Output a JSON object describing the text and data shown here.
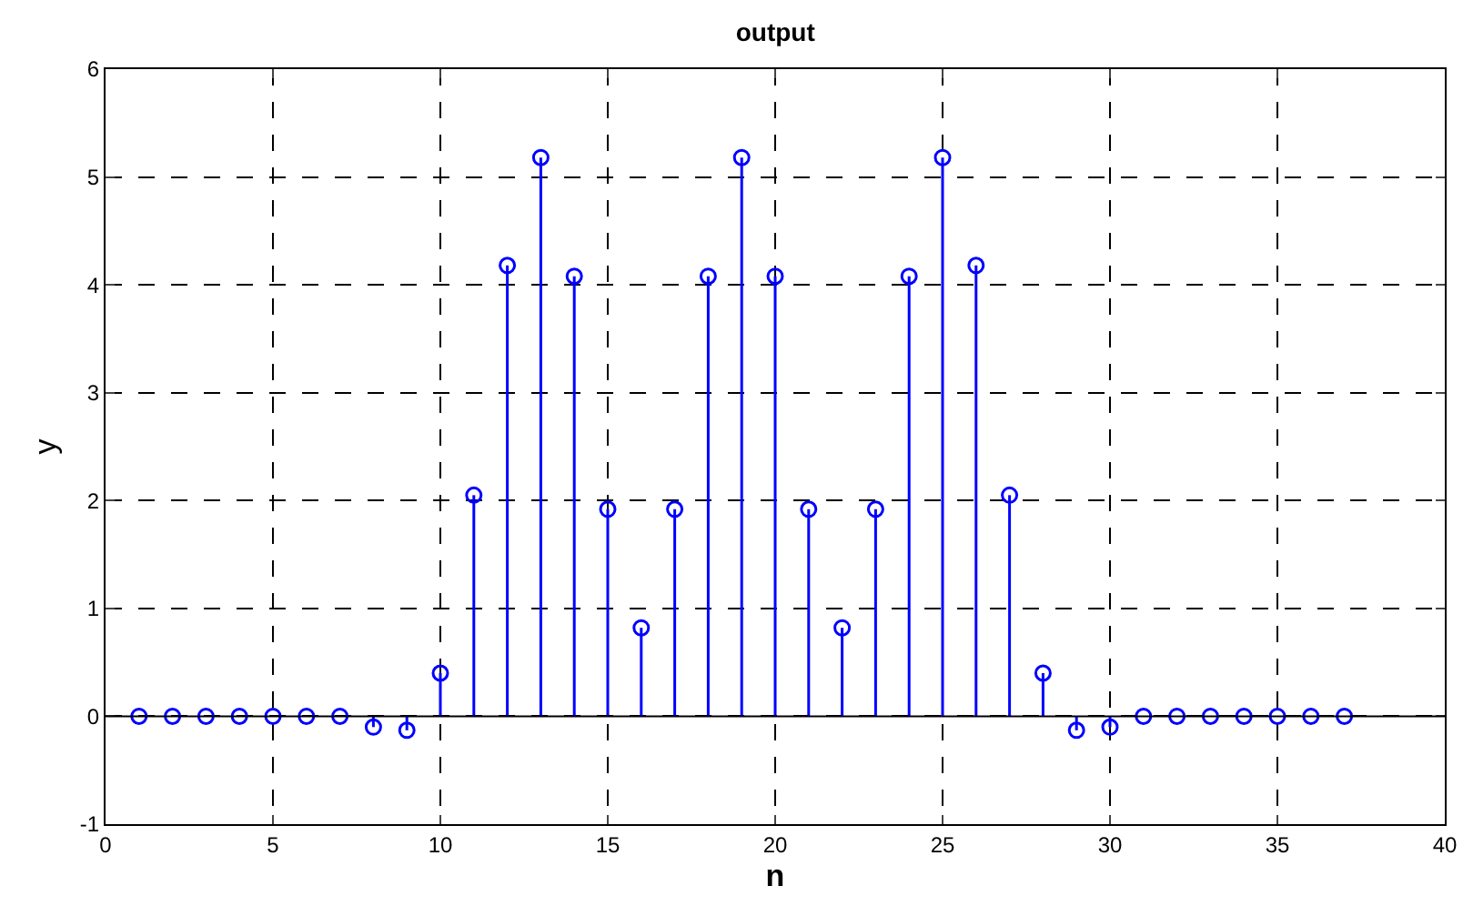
{
  "chart_data": {
    "type": "lollipop",
    "title": "output",
    "xlabel": "n",
    "ylabel": "y",
    "x": [
      1,
      2,
      3,
      4,
      5,
      6,
      7,
      8,
      9,
      10,
      11,
      12,
      13,
      14,
      15,
      16,
      17,
      18,
      19,
      20,
      21,
      22,
      23,
      24,
      25,
      26,
      27,
      28,
      29,
      30,
      31,
      32,
      33,
      34,
      35,
      36,
      37
    ],
    "series": [
      {
        "color": "#0000ff",
        "values": [
          0,
          0,
          0,
          0,
          0,
          0,
          0,
          -0.1,
          -0.13,
          0.4,
          2.05,
          4.18,
          5.18,
          4.08,
          1.92,
          0.82,
          1.92,
          4.08,
          5.18,
          4.08,
          1.92,
          0.82,
          1.92,
          4.08,
          5.18,
          4.18,
          2.05,
          0.4,
          -0.13,
          -0.1,
          0,
          0,
          0,
          0,
          0,
          0,
          0
        ]
      }
    ],
    "xlim": [
      0,
      40
    ],
    "xticks": [
      0,
      5,
      10,
      15,
      20,
      25,
      30,
      35,
      40
    ],
    "ylim": [
      -1,
      6
    ],
    "yticks": [
      -1,
      0,
      1,
      2,
      3,
      4,
      5,
      6
    ],
    "ref_lines": [
      {
        "axis": "y",
        "value": 0,
        "color": "#000000"
      }
    ],
    "grid": true,
    "marker": "circle",
    "line_style": "solid"
  }
}
